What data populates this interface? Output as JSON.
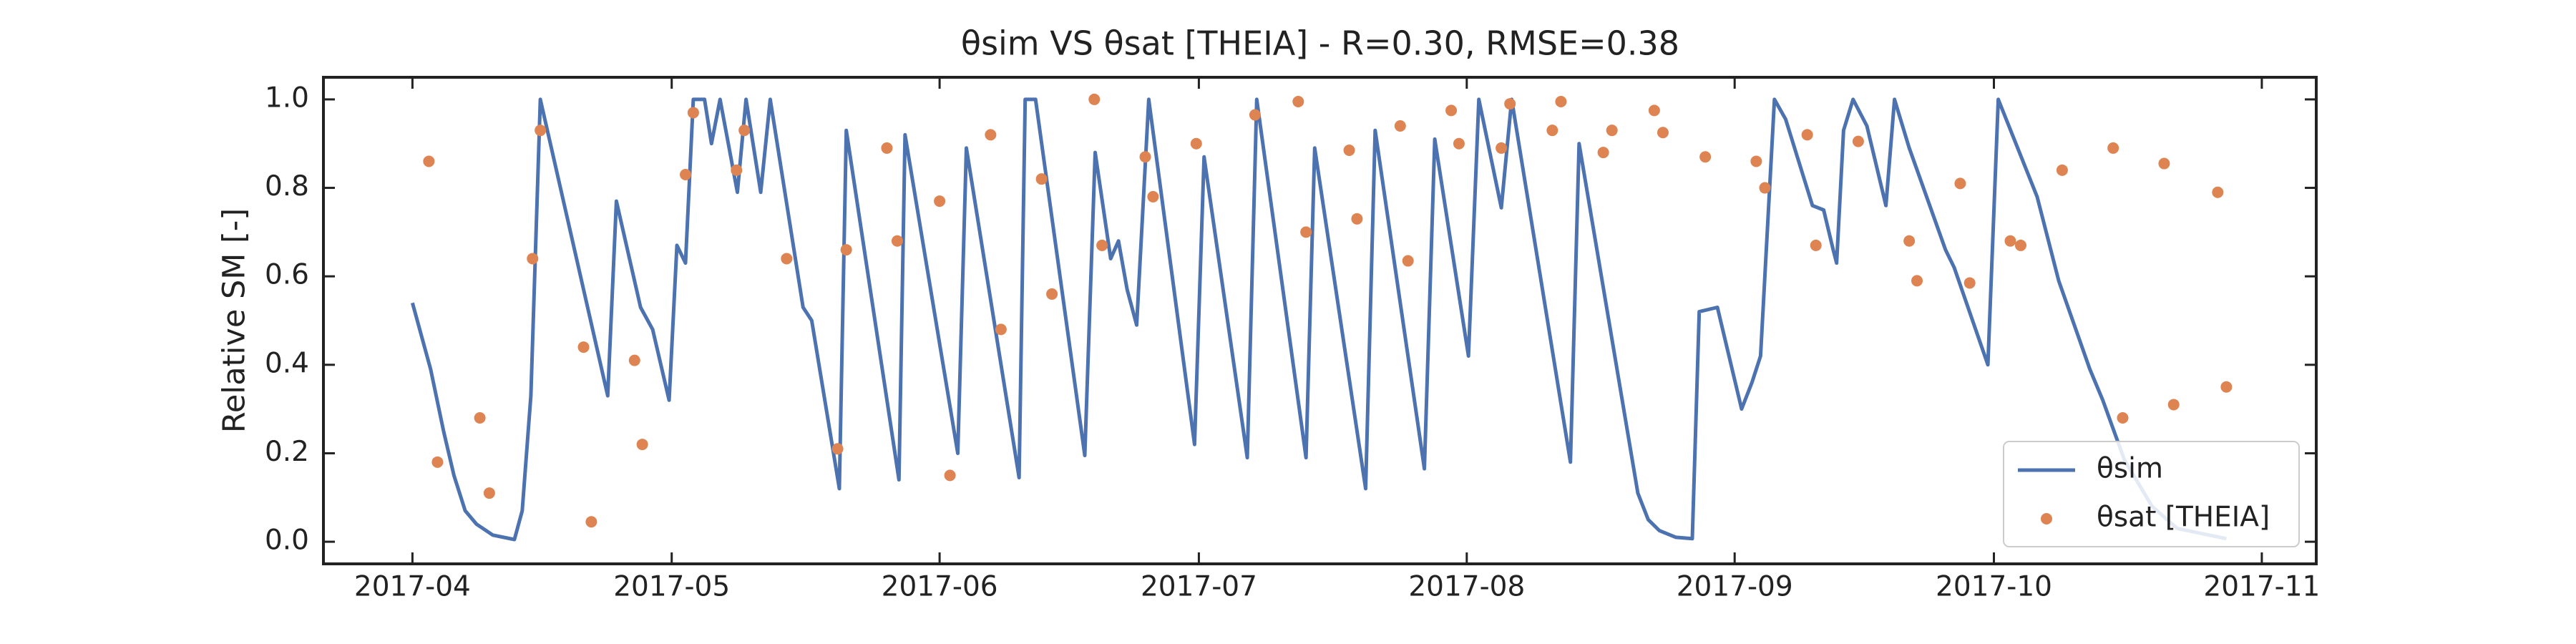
{
  "chart_data": {
    "type": "line-scatter",
    "title": "θsim VS θsat [THEIA] - R=0.30, RMSE=0.38",
    "ylabel": "Relative SM [-]",
    "xlim": [
      -10.3,
      220.3
    ],
    "xticks": [
      {
        "value": 0,
        "label": "2017-04"
      },
      {
        "value": 30,
        "label": "2017-05"
      },
      {
        "value": 61,
        "label": "2017-06"
      },
      {
        "value": 91,
        "label": "2017-07"
      },
      {
        "value": 122,
        "label": "2017-08"
      },
      {
        "value": 153,
        "label": "2017-09"
      },
      {
        "value": 183,
        "label": "2017-10"
      },
      {
        "value": 214,
        "label": "2017-11"
      }
    ],
    "ylim": [
      -0.05,
      1.05
    ],
    "yticks": [
      {
        "value": 0,
        "label": "0.0"
      },
      0.2,
      0.4,
      0.6,
      0.8,
      {
        "value": 1,
        "label": "1.0"
      }
    ],
    "legend": "lower right",
    "series": [
      {
        "name": "θsim",
        "type": "line",
        "color": "#4c72b0",
        "x": [
          0,
          2.1,
          3.6,
          4.8,
          6.1,
          7.4,
          9.3,
          11.8,
          12.7,
          13.7,
          14.8,
          22.6,
          23.6,
          26.4,
          27.8,
          29.7,
          30.6,
          31.6,
          32.5,
          33.8,
          34.6,
          35.6,
          37.6,
          38.6,
          40.3,
          41.4,
          45.2,
          46.2,
          49.4,
          50.2,
          56.3,
          57.0,
          63.1,
          64.1,
          70.2,
          70.9,
          72.1,
          77.8,
          79.0,
          80.8,
          81.7,
          82.7,
          83.8,
          85.2,
          90.5,
          91.6,
          96.6,
          97.7,
          103.4,
          104.4,
          110.3,
          111.4,
          117.1,
          118.3,
          122.2,
          123.4,
          126.0,
          127.2,
          134.0,
          135.0,
          141.8,
          143.0,
          144.3,
          146.2,
          148.1,
          148.9,
          151.0,
          153.8,
          155.0,
          156.0,
          157.6,
          158.9,
          162.0,
          163.3,
          164.4,
          164.8,
          165.6,
          166.7,
          168.3,
          170.5,
          171.5,
          173.2,
          177.4,
          178.4,
          182.3,
          183.5,
          188.0,
          190.5,
          194.1,
          195.6,
          198.1,
          201.3,
          204.2,
          209.9
        ],
        "values": [
          0.54,
          0.39,
          0.25,
          0.15,
          0.07,
          0.04,
          0.015,
          0.005,
          0.07,
          0.33,
          1.0,
          0.33,
          0.77,
          0.53,
          0.48,
          0.32,
          0.67,
          0.63,
          1.0,
          1.0,
          0.9,
          1.0,
          0.79,
          1.0,
          0.79,
          1.0,
          0.53,
          0.5,
          0.12,
          0.93,
          0.14,
          0.92,
          0.2,
          0.89,
          0.145,
          1.0,
          1.0,
          0.195,
          0.88,
          0.64,
          0.68,
          0.57,
          0.49,
          1.0,
          0.22,
          0.87,
          0.19,
          1.0,
          0.19,
          0.89,
          0.12,
          0.93,
          0.165,
          0.91,
          0.42,
          1.0,
          0.755,
          1.0,
          0.18,
          0.9,
          0.11,
          0.05,
          0.025,
          0.01,
          0.007,
          0.52,
          0.53,
          0.3,
          0.36,
          0.42,
          1.0,
          0.955,
          0.76,
          0.75,
          0.66,
          0.63,
          0.93,
          1.0,
          0.94,
          0.76,
          1.0,
          0.89,
          0.66,
          0.62,
          0.4,
          1.0,
          0.78,
          0.59,
          0.39,
          0.32,
          0.185,
          0.08,
          0.03,
          0.007
        ]
      },
      {
        "name": "θsat [THEIA]",
        "type": "scatter",
        "color": "#dd8452",
        "x": [
          1.9,
          2.9,
          7.8,
          8.9,
          13.9,
          14.8,
          19.8,
          20.7,
          25.7,
          26.6,
          31.6,
          32.5,
          37.5,
          38.4,
          43.3,
          49.2,
          50.2,
          54.9,
          56.1,
          61.0,
          62.2,
          66.9,
          68.1,
          72.8,
          74.0,
          78.9,
          79.8,
          84.8,
          85.7,
          90.7,
          97.5,
          102.5,
          103.4,
          108.4,
          109.3,
          114.3,
          115.2,
          120.2,
          121.1,
          126.0,
          127.0,
          131.9,
          132.9,
          137.8,
          138.8,
          143.7,
          144.7,
          149.6,
          155.5,
          156.5,
          161.4,
          162.4,
          167.3,
          173.2,
          174.1,
          179.1,
          180.2,
          184.9,
          186.1,
          190.9,
          196.8,
          197.9,
          202.7,
          203.8,
          208.9,
          209.9
        ],
        "values": [
          0.86,
          0.18,
          0.28,
          0.11,
          0.64,
          0.93,
          0.44,
          0.045,
          0.41,
          0.22,
          0.83,
          0.97,
          0.84,
          0.93,
          0.64,
          0.21,
          0.66,
          0.89,
          0.68,
          0.77,
          0.15,
          0.92,
          0.48,
          0.82,
          0.56,
          1.0,
          0.67,
          0.87,
          0.78,
          0.9,
          0.965,
          0.995,
          0.7,
          0.885,
          0.73,
          0.94,
          0.635,
          0.975,
          0.9,
          0.89,
          0.99,
          0.93,
          0.995,
          0.88,
          0.93,
          0.975,
          0.925,
          0.87,
          0.86,
          0.8,
          0.92,
          0.67,
          0.905,
          0.68,
          0.59,
          0.81,
          0.585,
          0.68,
          0.67,
          0.84,
          0.89,
          0.28,
          0.855,
          0.31,
          0.79,
          0.35
        ]
      }
    ]
  }
}
